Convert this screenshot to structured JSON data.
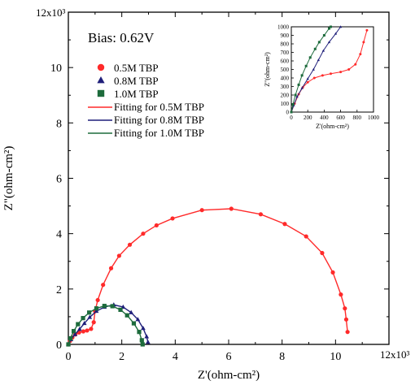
{
  "colors": {
    "red": "#ff2a2a",
    "blue": "#1f1f7a",
    "green": "#1d6b3c",
    "axis": "#000000"
  },
  "chart_data": {
    "type": "scatter",
    "annotation": "Bias: 0.62V",
    "xlabel": "Z'(ohm-cm²)",
    "ylabel": "Z\"(ohm-cm²)",
    "x_multiplier_label": "12x10³",
    "y_multiplier_label": "12x10³",
    "xlim": [
      0,
      12000
    ],
    "ylim": [
      0,
      12000
    ],
    "xticks": [
      0,
      2,
      4,
      6,
      8,
      10
    ],
    "yticks": [
      0,
      2,
      4,
      6,
      8,
      10
    ],
    "legend": {
      "placement": "upper-left",
      "entries": [
        {
          "label": "0.5M TBP",
          "marker": "circle",
          "color": "#ff2a2a"
        },
        {
          "label": "0.8M TBP",
          "marker": "triangle",
          "color": "#1f1f7a"
        },
        {
          "label": "1.0M TBP",
          "marker": "square",
          "color": "#1d6b3c"
        },
        {
          "label": "Fitting for 0.5M TBP",
          "line": true,
          "color": "#ff2a2a"
        },
        {
          "label": "Fitting for 0.8M TBP",
          "line": true,
          "color": "#1f1f7a"
        },
        {
          "label": "Fitting for 1.0M TBP",
          "line": true,
          "color": "#1d6b3c"
        }
      ]
    },
    "series": [
      {
        "name": "0.5M TBP",
        "color": "#ff2a2a",
        "marker": "circle",
        "points": [
          [
            0,
            0
          ],
          [
            60,
            120
          ],
          [
            150,
            250
          ],
          [
            260,
            360
          ],
          [
            400,
            430
          ],
          [
            560,
            470
          ],
          [
            700,
            500
          ],
          [
            850,
            560
          ],
          [
            950,
            800
          ],
          [
            1000,
            1200
          ],
          [
            1100,
            1600
          ],
          [
            1300,
            2150
          ],
          [
            1600,
            2750
          ],
          [
            1900,
            3200
          ],
          [
            2300,
            3600
          ],
          [
            2800,
            4000
          ],
          [
            3300,
            4300
          ],
          [
            3900,
            4550
          ],
          [
            5000,
            4850
          ],
          [
            6100,
            4900
          ],
          [
            7200,
            4700
          ],
          [
            8100,
            4350
          ],
          [
            8900,
            3900
          ],
          [
            9500,
            3300
          ],
          [
            9900,
            2600
          ],
          [
            10200,
            1800
          ],
          [
            10350,
            1300
          ],
          [
            10400,
            900
          ],
          [
            10450,
            450
          ]
        ]
      },
      {
        "name": "0.8M TBP",
        "color": "#1f1f7a",
        "marker": "triangle",
        "points": [
          [
            0,
            0
          ],
          [
            100,
            180
          ],
          [
            250,
            360
          ],
          [
            420,
            550
          ],
          [
            600,
            760
          ],
          [
            800,
            980
          ],
          [
            1050,
            1200
          ],
          [
            1350,
            1350
          ],
          [
            1700,
            1430
          ],
          [
            2050,
            1350
          ],
          [
            2350,
            1150
          ],
          [
            2600,
            900
          ],
          [
            2800,
            580
          ],
          [
            2930,
            280
          ],
          [
            2980,
            80
          ]
        ]
      },
      {
        "name": "1.0M TBP",
        "color": "#1d6b3c",
        "marker": "square",
        "points": [
          [
            0,
            0
          ],
          [
            80,
            220
          ],
          [
            200,
            480
          ],
          [
            360,
            730
          ],
          [
            550,
            950
          ],
          [
            780,
            1150
          ],
          [
            1050,
            1300
          ],
          [
            1350,
            1390
          ],
          [
            1650,
            1380
          ],
          [
            1950,
            1250
          ],
          [
            2200,
            1050
          ],
          [
            2450,
            760
          ],
          [
            2650,
            450
          ],
          [
            2750,
            150
          ],
          [
            2780,
            0
          ]
        ]
      }
    ],
    "inset": {
      "xlabel": "Z'(ohm-cm²)",
      "ylabel": "Z\"(ohm-cm²)",
      "xlim": [
        0,
        1000
      ],
      "ylim": [
        0,
        1000
      ],
      "xticks": [
        0,
        200,
        400,
        600,
        800,
        1000
      ],
      "yticks": [
        0,
        100,
        200,
        300,
        400,
        500,
        600,
        700,
        800,
        900,
        1000
      ],
      "series": [
        {
          "name": "0.5M TBP",
          "color": "#ff2a2a",
          "marker": "circle",
          "points": [
            [
              0,
              0
            ],
            [
              40,
              100
            ],
            [
              90,
              210
            ],
            [
              140,
              290
            ],
            [
              200,
              350
            ],
            [
              280,
              400
            ],
            [
              380,
              430
            ],
            [
              480,
              450
            ],
            [
              600,
              470
            ],
            [
              700,
              500
            ],
            [
              780,
              560
            ],
            [
              840,
              680
            ],
            [
              880,
              820
            ],
            [
              920,
              960
            ]
          ]
        },
        {
          "name": "0.8M TBP",
          "color": "#1f1f7a",
          "marker": "triangle",
          "points": [
            [
              0,
              0
            ],
            [
              30,
              80
            ],
            [
              70,
              180
            ],
            [
              130,
              280
            ],
            [
              200,
              390
            ],
            [
              270,
              500
            ],
            [
              330,
              610
            ],
            [
              390,
              720
            ],
            [
              460,
              820
            ],
            [
              540,
              920
            ],
            [
              600,
              1000
            ]
          ]
        },
        {
          "name": "1.0M TBP",
          "color": "#1d6b3c",
          "marker": "square",
          "points": [
            [
              0,
              0
            ],
            [
              20,
              90
            ],
            [
              50,
              200
            ],
            [
              90,
              320
            ],
            [
              130,
              430
            ],
            [
              180,
              540
            ],
            [
              230,
              640
            ],
            [
              290,
              740
            ],
            [
              340,
              820
            ],
            [
              400,
              900
            ],
            [
              460,
              980
            ],
            [
              480,
              1000
            ]
          ]
        }
      ]
    }
  }
}
